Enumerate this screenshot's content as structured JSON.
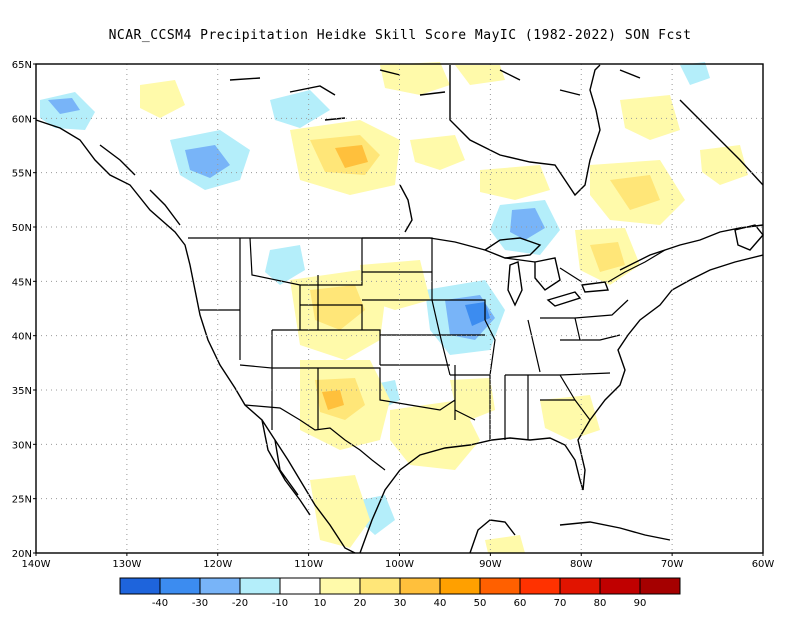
{
  "title": "NCAR_CCSM4  Precipitation Heidke Skill Score MayIC (1982-2022) SON Fcst",
  "lat_labels": [
    "65N",
    "60N",
    "55N",
    "50N",
    "45N",
    "40N",
    "35N",
    "30N",
    "25N",
    "20N"
  ],
  "lon_labels": [
    "140W",
    "130W",
    "120W",
    "110W",
    "100W",
    "90W",
    "80W",
    "70W",
    "60W"
  ],
  "colorbar": {
    "colors": [
      "#1e64dc",
      "#3c8cf0",
      "#78b4f8",
      "#b4eefa",
      "#ffffff",
      "#fffaaa",
      "#ffe678",
      "#ffc03c",
      "#ffa000",
      "#ff6000",
      "#ff3200",
      "#e11400",
      "#c00000",
      "#a50000"
    ],
    "labels": [
      "-40",
      "-30",
      "-20",
      "-10",
      "10",
      "20",
      "30",
      "40",
      "50",
      "60",
      "70",
      "80",
      "90"
    ]
  },
  "colors": {
    "coast": "#000000",
    "grid": "#999999"
  }
}
